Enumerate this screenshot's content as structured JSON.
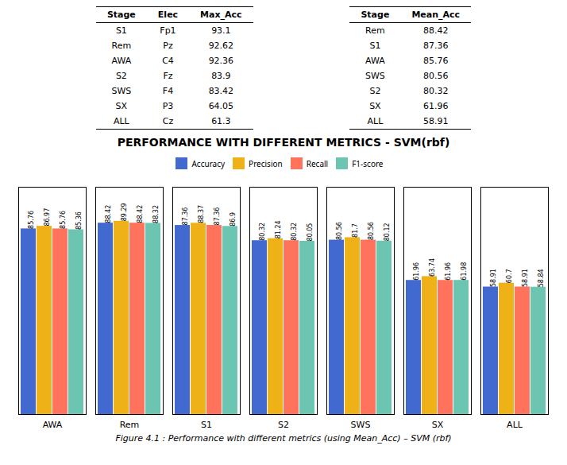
{
  "chart_data": [
    {
      "type": "table",
      "columns": [
        "Stage",
        "Elec",
        "Max_Acc"
      ],
      "rows": [
        [
          "S1",
          "Fp1",
          "93.1"
        ],
        [
          "Rem",
          "Pz",
          "92.62"
        ],
        [
          "AWA",
          "C4",
          "92.36"
        ],
        [
          "S2",
          "Fz",
          "83.9"
        ],
        [
          "SWS",
          "F4",
          "83.42"
        ],
        [
          "SX",
          "P3",
          "64.05"
        ],
        [
          "ALL",
          "Cz",
          "61.3"
        ]
      ]
    },
    {
      "type": "table",
      "columns": [
        "Stage",
        "Mean_Acc"
      ],
      "rows": [
        [
          "Rem",
          "88.42"
        ],
        [
          "S1",
          "87.36"
        ],
        [
          "AWA",
          "85.76"
        ],
        [
          "SWS",
          "80.56"
        ],
        [
          "S2",
          "80.32"
        ],
        [
          "SX",
          "61.96"
        ],
        [
          "ALL",
          "58.91"
        ]
      ]
    },
    {
      "type": "bar",
      "title": "PERFORMANCE WITH DIFFERENT METRICS - SVM(rbf)",
      "caption": "Figure 4.1 : Performance with different metrics (using Mean_Acc) – SVM (rbf)",
      "categories": [
        "AWA",
        "Rem",
        "S1",
        "S2",
        "SWS",
        "SX",
        "ALL"
      ],
      "series": [
        {
          "name": "Accuracy",
          "values": [
            85.76,
            88.42,
            87.36,
            80.32,
            80.56,
            61.96,
            58.91
          ]
        },
        {
          "name": "Precision",
          "values": [
            86.97,
            89.29,
            88.37,
            81.24,
            81.7,
            63.74,
            60.7
          ]
        },
        {
          "name": "Recall",
          "values": [
            85.76,
            88.42,
            87.36,
            80.32,
            80.56,
            61.96,
            58.91
          ]
        },
        {
          "name": "F1-score",
          "values": [
            85.36,
            88.32,
            86.9,
            80.05,
            80.12,
            61.98,
            58.84
          ]
        }
      ],
      "ylim": [
        0,
        105
      ],
      "tick_labels": "x",
      "data_labels": true,
      "legend": "top"
    }
  ]
}
